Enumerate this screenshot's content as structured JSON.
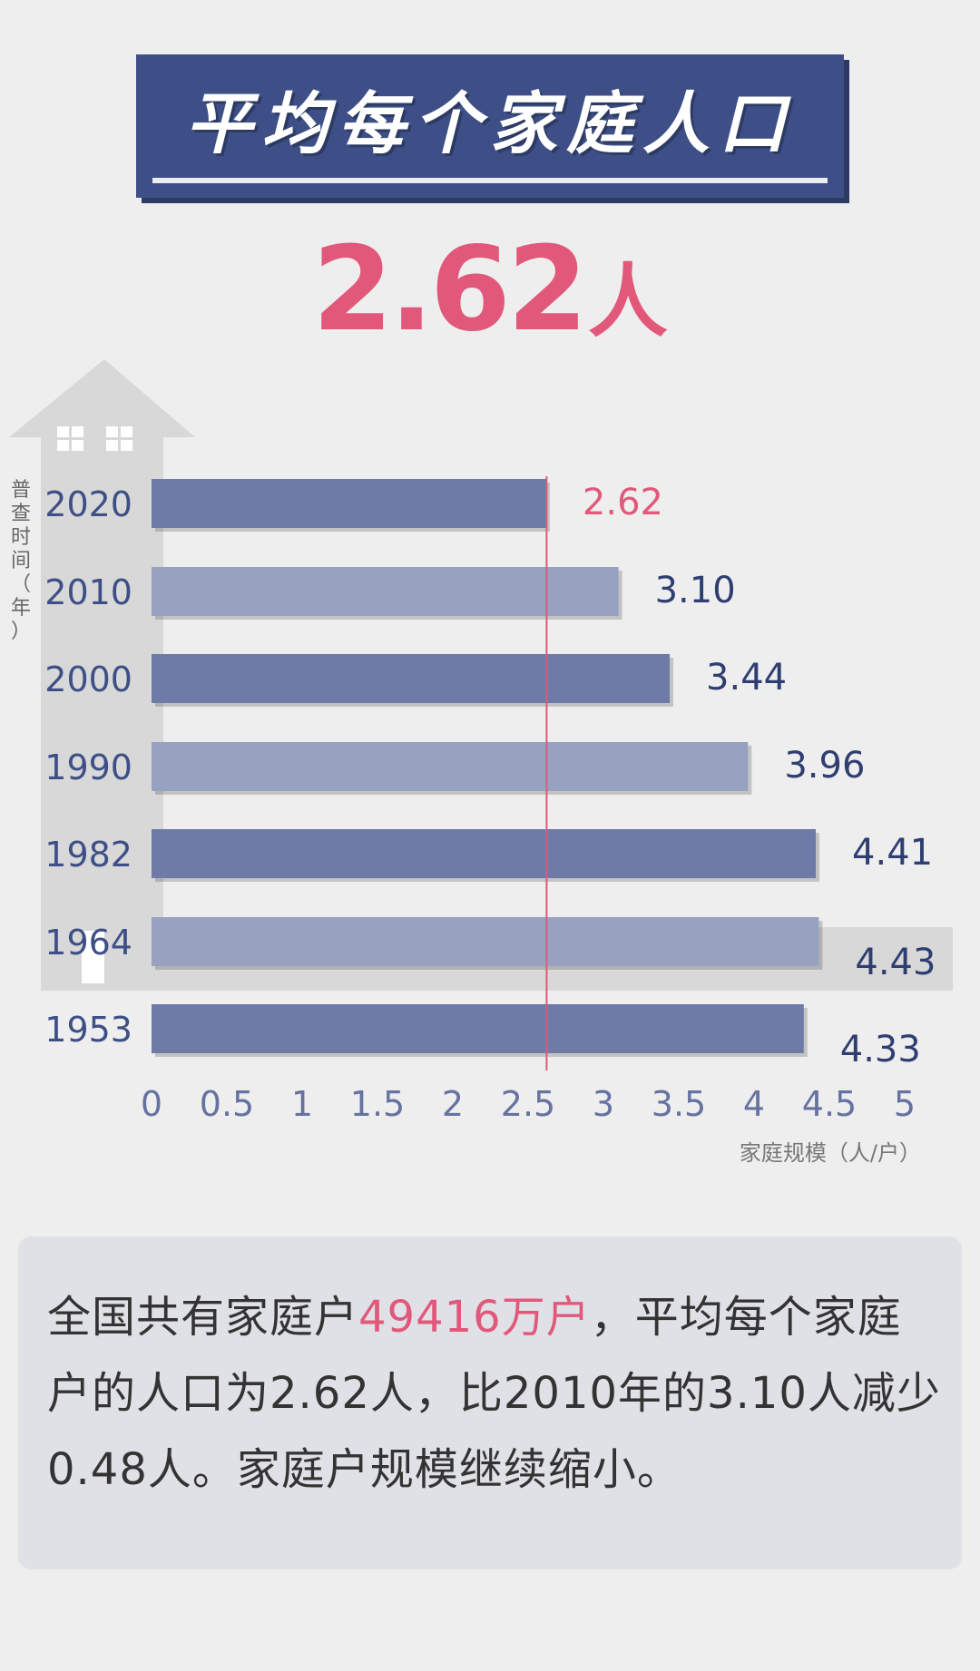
{
  "header": {
    "title": "平均每个家庭人口",
    "value": "2.62",
    "unit": "人"
  },
  "chart_data": {
    "type": "bar",
    "orientation": "horizontal",
    "ylabel": "普查时间（年）",
    "xlabel": "家庭规模（人/户）",
    "categories": [
      "2020",
      "2010",
      "2000",
      "1990",
      "1982",
      "1964",
      "1953"
    ],
    "values": [
      2.62,
      3.1,
      3.44,
      3.96,
      4.41,
      4.43,
      4.33
    ],
    "value_labels": [
      "2.62",
      "3.10",
      "3.44",
      "3.96",
      "4.41",
      "4.43",
      "4.33"
    ],
    "xticks": [
      "0",
      "0.5",
      "1",
      "1.5",
      "2",
      "2.5",
      "3",
      "3.5",
      "4",
      "4.5",
      "5"
    ],
    "xlim": [
      0,
      5
    ],
    "reference_value": 2.62,
    "highlight_category": "2020",
    "colors": {
      "bar_dark": "#6d7ba6",
      "bar_light": "#97a2c1",
      "highlight": "#e2587a",
      "house": "#d8d8d8"
    }
  },
  "note": {
    "part1": "全国共有家庭户",
    "highlight": "49416万户",
    "part2": "，平均每个家庭户的人口为2.62人，比2010年的3.10人减少0.48人。家庭户规模继续缩小。"
  }
}
